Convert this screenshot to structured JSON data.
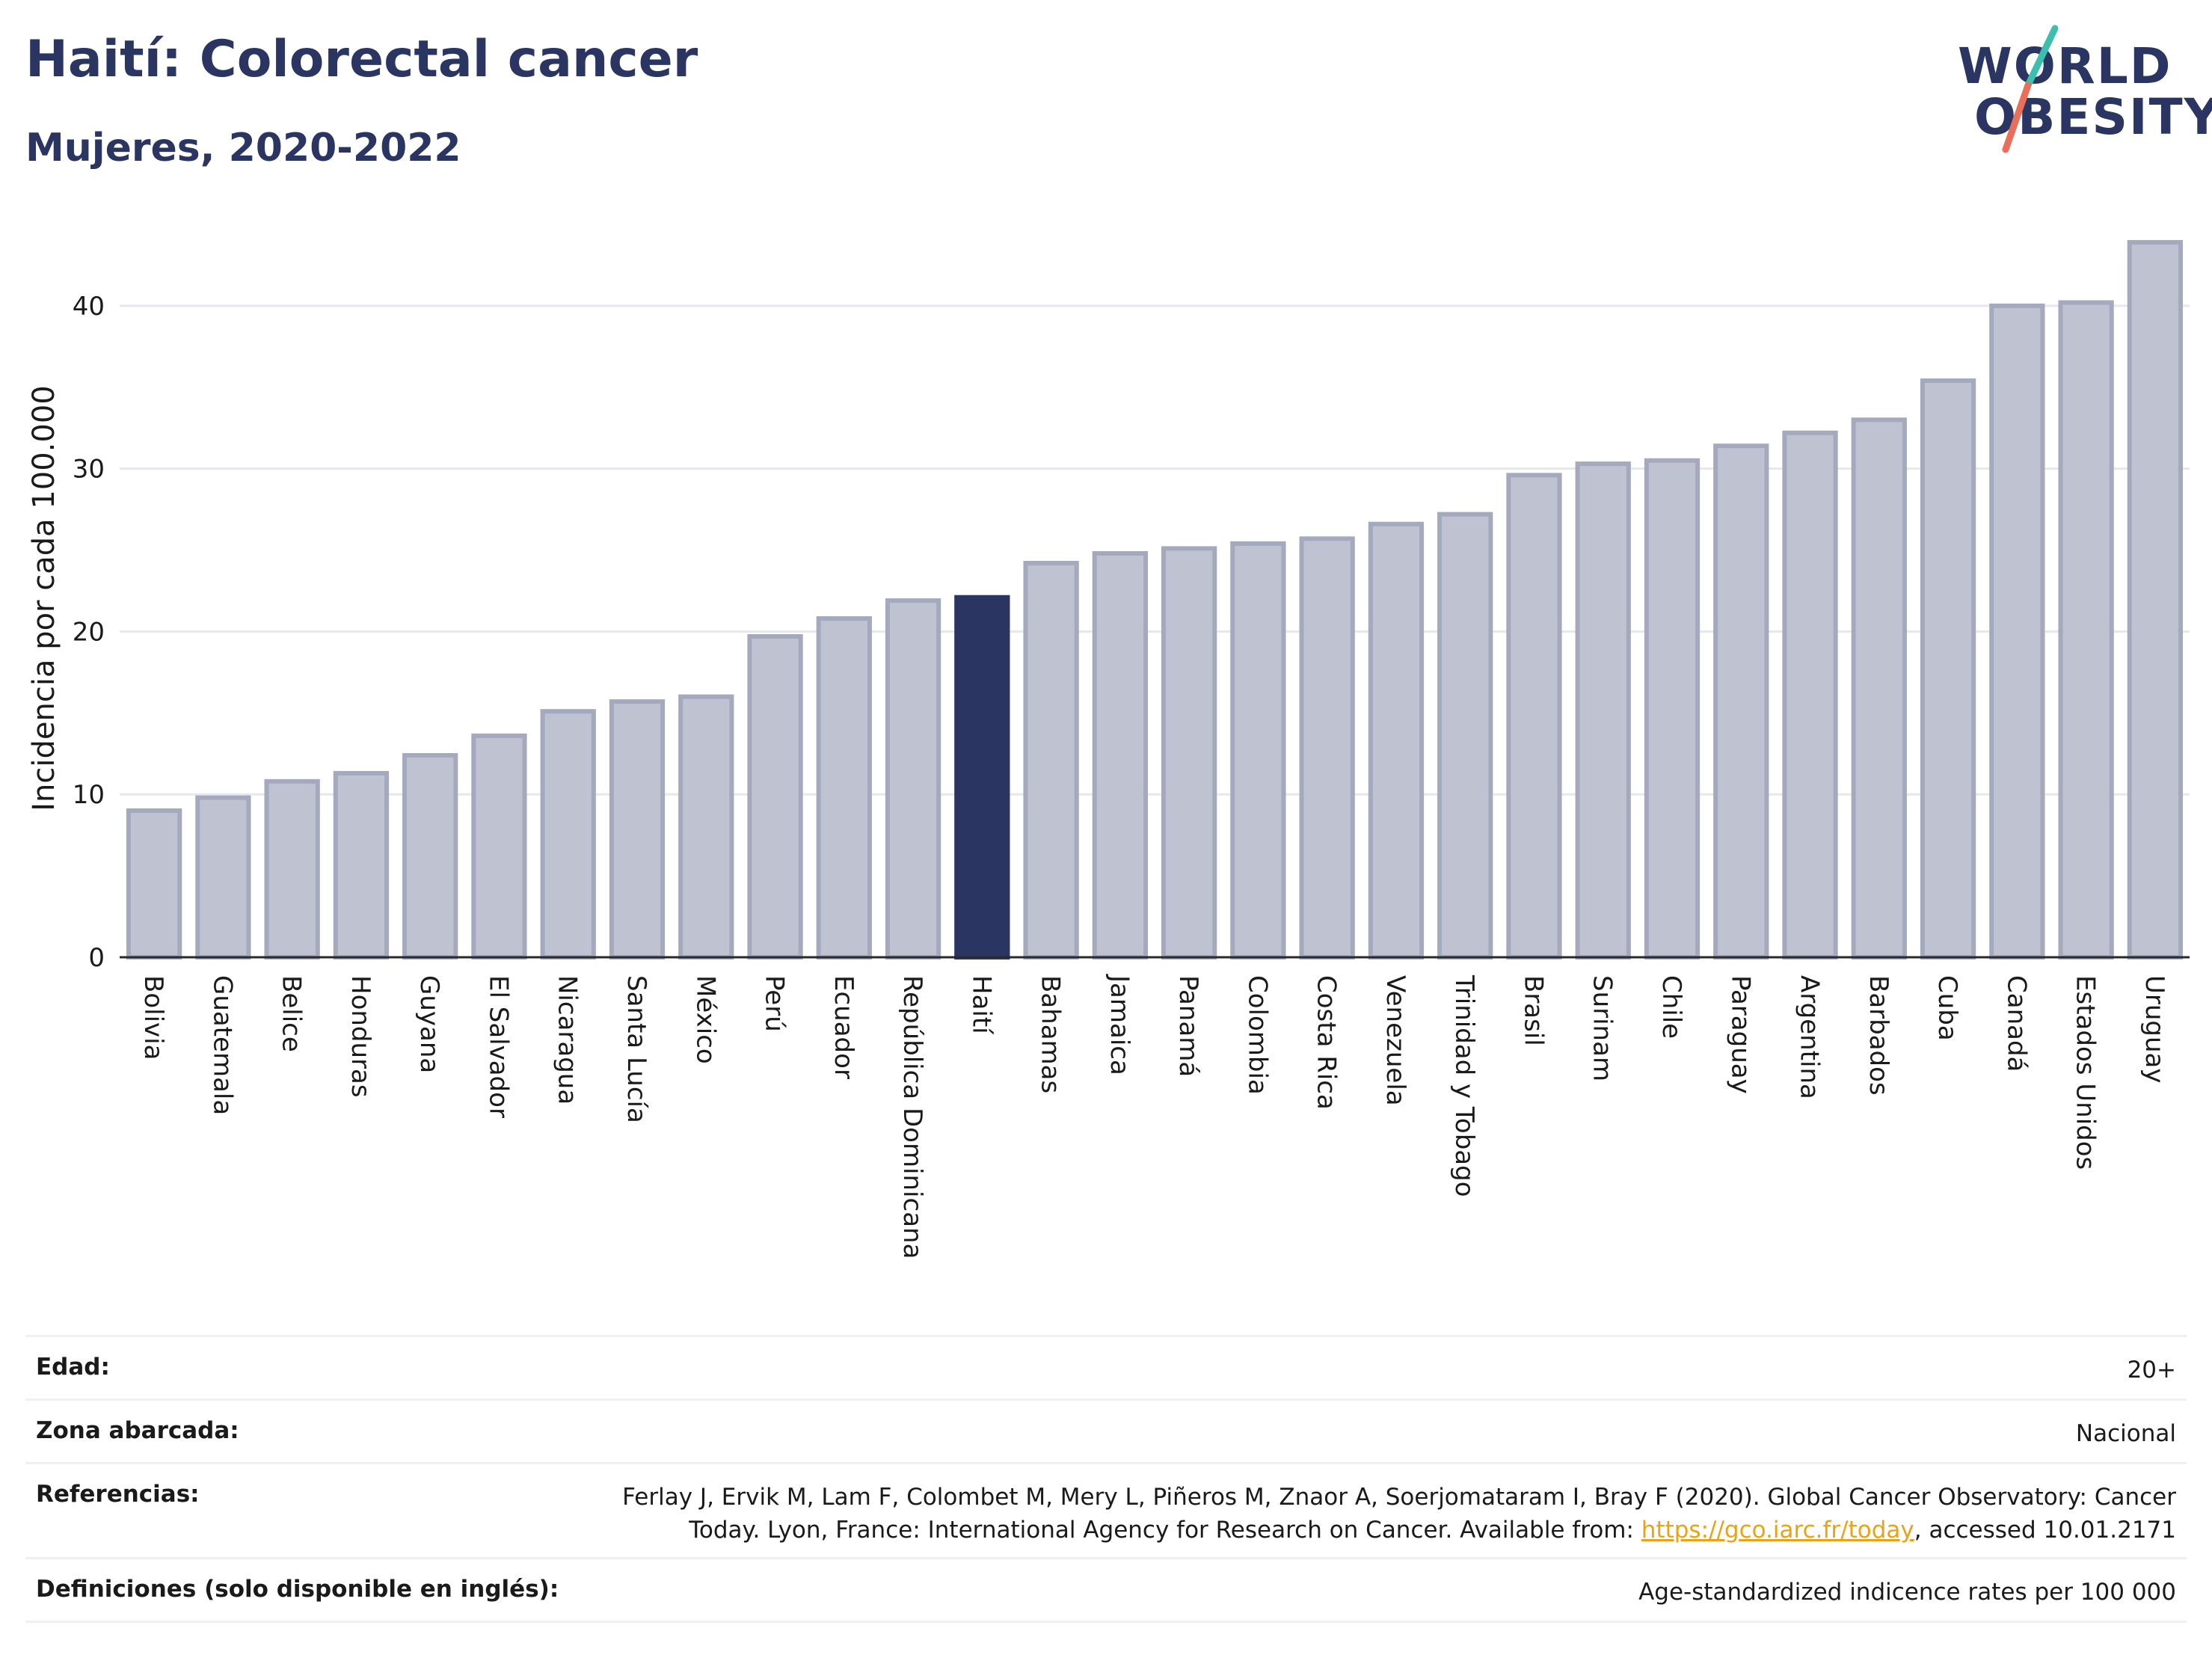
{
  "header": {
    "title": "Haití: Colorectal cancer",
    "subtitle": "Mujeres, 2020-2022"
  },
  "logo": {
    "line1": "WORLD",
    "line2": "OBESITY"
  },
  "colors": {
    "highlight_bar": "#2a3561",
    "other_bar": "#bfc3d1",
    "other_bar_border": "#a4a9bd",
    "title": "#2a3561",
    "logo_teal": "#3cbfae",
    "logo_coral": "#e8705a"
  },
  "chart_data": {
    "type": "bar",
    "ylabel": "Incidencia por cada 100.000",
    "ylim": [
      0,
      45
    ],
    "yticks": [
      0,
      10,
      20,
      30,
      40
    ],
    "grid": true,
    "highlight": "Haití",
    "categories": [
      "Bolivia",
      "Guatemala",
      "Belice",
      "Honduras",
      "Guyana",
      "El Salvador",
      "Nicaragua",
      "Santa Lucía",
      "México",
      "Perú",
      "Ecuador",
      "República Dominicana",
      "Haití",
      "Bahamas",
      "Jamaica",
      "Panamá",
      "Colombia",
      "Costa Rica",
      "Venezuela",
      "Trinidad y Tobago",
      "Brasil",
      "Surinam",
      "Chile",
      "Paraguay",
      "Argentina",
      "Barbados",
      "Cuba",
      "Canadá",
      "Estados Unidos",
      "Uruguay"
    ],
    "values": [
      9.0,
      9.8,
      10.8,
      11.3,
      12.4,
      13.6,
      15.1,
      15.7,
      16.0,
      19.7,
      20.8,
      21.9,
      22.1,
      24.2,
      24.8,
      25.1,
      25.4,
      25.7,
      26.6,
      27.2,
      29.6,
      30.3,
      30.5,
      31.4,
      32.2,
      33.0,
      35.4,
      40.0,
      40.2,
      43.9
    ]
  },
  "info_table": {
    "age_label": "Edad:",
    "age_value": "20+",
    "area_label": "Zona abarcada:",
    "area_value": "Nacional",
    "refs_label": "Referencias:",
    "refs_line1": "Ferlay J, Ervik M, Lam F, Colombet M, Mery L, Piñeros M, Znaor A, Soerjomataram I, Bray F (2020). Global Cancer Observatory: Cancer",
    "refs_line2a": "Today. Lyon, France: International Agency for Research on Cancer. Available from: ",
    "refs_link": "https://gco.iarc.fr/today",
    "refs_line2b": ", accessed 10.01.2171",
    "defs_label": "Definiciones (solo disponible en inglés):",
    "defs_value": "Age-standardized indicence rates per 100 000"
  }
}
